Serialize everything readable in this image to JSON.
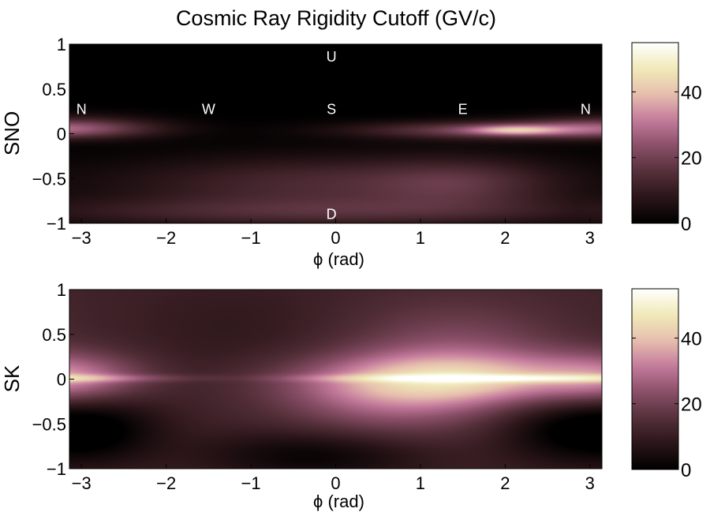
{
  "figure": {
    "title": "Cosmic Ray Rigidity Cutoff (GV/c)"
  },
  "colormap": [
    "#000000",
    "#2a1518",
    "#55303a",
    "#8a4f68",
    "#c47a9c",
    "#e7bfae",
    "#f0eab8",
    "#ffffff"
  ],
  "chart_data": [
    {
      "type": "heatmap",
      "name": "SNO",
      "ylabel": "SNO",
      "xlabel": "ϕ (rad)",
      "xlim": [
        -3.14159,
        3.14159
      ],
      "ylim": [
        -1,
        1
      ],
      "xticks": [
        "−3",
        "−2",
        "−1",
        "0",
        "1",
        "2",
        "3"
      ],
      "xtick_values": [
        -3,
        -2,
        -1,
        0,
        1,
        2,
        3
      ],
      "yticks": [
        "1",
        "0.5",
        "0",
        "−0.5",
        "−1"
      ],
      "ytick_values": [
        1,
        0.5,
        0,
        -0.5,
        -1
      ],
      "color_range": [
        0,
        55
      ],
      "colorbar_ticks": [
        "40",
        "20",
        "0"
      ],
      "colorbar_tick_values": [
        40,
        20,
        0
      ],
      "annotations": [
        {
          "text": "N",
          "x": -3.0,
          "y": 0.28
        },
        {
          "text": "W",
          "x": -1.5,
          "y": 0.28
        },
        {
          "text": "S",
          "x": -0.05,
          "y": 0.28
        },
        {
          "text": "E",
          "x": 1.5,
          "y": 0.28
        },
        {
          "text": "N",
          "x": 2.95,
          "y": 0.28
        },
        {
          "text": "U",
          "x": -0.05,
          "y": 0.87
        },
        {
          "text": "D",
          "x": -0.05,
          "y": -0.89
        }
      ],
      "features": [
        {
          "x": 0.0,
          "y": -0.55,
          "sx": 1.9,
          "sy": 0.22,
          "v": 14
        },
        {
          "x": 1.5,
          "y": -0.55,
          "sx": 0.7,
          "sy": 0.2,
          "v": 8
        },
        {
          "x": -0.3,
          "y": -0.88,
          "sx": 2.6,
          "sy": 0.12,
          "v": 12
        },
        {
          "x": 2.0,
          "y": 0.04,
          "sx": 1.2,
          "sy": 0.07,
          "v": 22
        },
        {
          "x": 2.1,
          "y": 0.04,
          "sx": 0.35,
          "sy": 0.035,
          "v": 18
        },
        {
          "x": -3.1,
          "y": 0.08,
          "sx": 0.7,
          "sy": 0.09,
          "v": 15
        }
      ]
    },
    {
      "type": "heatmap",
      "name": "SK",
      "ylabel": "SK",
      "xlabel": "ϕ (rad)",
      "xlim": [
        -3.14159,
        3.14159
      ],
      "ylim": [
        -1,
        1
      ],
      "xticks": [
        "−3",
        "−2",
        "−1",
        "0",
        "1",
        "2",
        "3"
      ],
      "xtick_values": [
        -3,
        -2,
        -1,
        0,
        1,
        2,
        3
      ],
      "yticks": [
        "1",
        "0.5",
        "0",
        "−0.5",
        "−1"
      ],
      "ytick_values": [
        1,
        0.5,
        0,
        -0.5,
        -1
      ],
      "color_range": [
        0,
        55
      ],
      "colorbar_ticks": [
        "40",
        "20",
        "0"
      ],
      "colorbar_tick_values": [
        40,
        20,
        0
      ],
      "base": 12,
      "features": [
        {
          "x": 1.5,
          "y": 0.0,
          "sx": 1.3,
          "sy": 0.2,
          "v": 22
        },
        {
          "x": 1.4,
          "y": 0.3,
          "sx": 0.9,
          "sy": 0.4,
          "v": 10
        },
        {
          "x": 0.6,
          "y": -0.25,
          "sx": 0.9,
          "sy": 0.3,
          "v": 12
        },
        {
          "x": 2.0,
          "y": 0.01,
          "sx": 1.5,
          "sy": 0.03,
          "v": 18
        },
        {
          "x": -3.1,
          "y": 0.0,
          "sx": 0.55,
          "sy": 0.2,
          "v": 14
        },
        {
          "x": -2.8,
          "y": -0.55,
          "sx": 0.55,
          "sy": 0.28,
          "v": -11
        },
        {
          "x": 2.7,
          "y": -0.55,
          "sx": 0.6,
          "sy": 0.28,
          "v": -11
        },
        {
          "x": -0.25,
          "y": -0.85,
          "sx": 0.95,
          "sy": 0.2,
          "v": -11
        },
        {
          "x": -1.2,
          "y": 0.55,
          "sx": 0.9,
          "sy": 0.45,
          "v": -3
        }
      ]
    }
  ]
}
